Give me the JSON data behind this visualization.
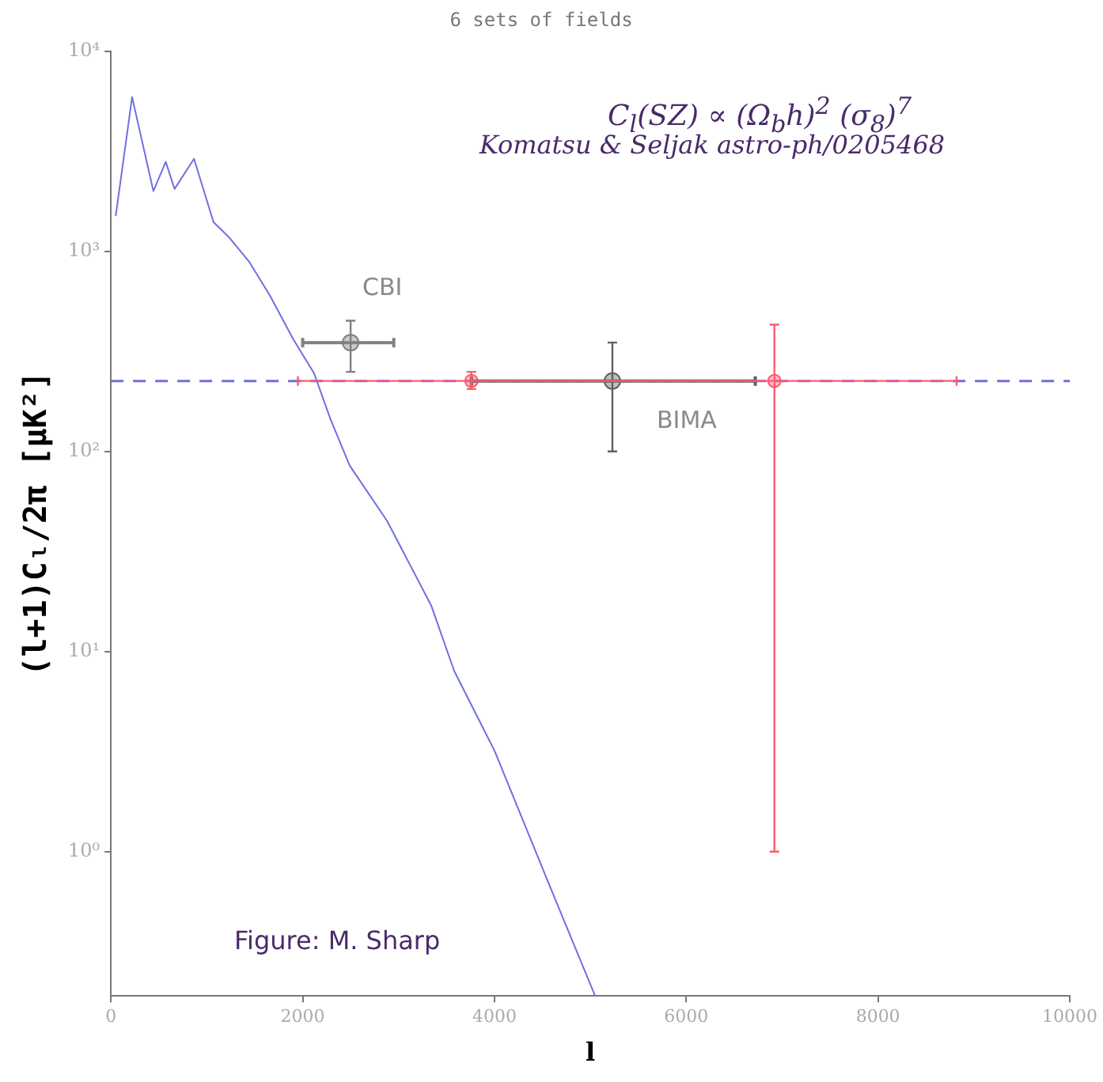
{
  "chart_data": {
    "type": "scatter",
    "title": "6 sets of fields",
    "xlabel": "l",
    "ylabel": "(l+1)Cₗ/2π [μK²]",
    "log": "y",
    "xlim": [
      0,
      10000
    ],
    "xticks": [
      0,
      2000,
      4000,
      6000,
      8000,
      10000
    ],
    "ylim": [
      0.19,
      10000
    ],
    "yticks": [
      {
        "value": 1,
        "label": "10⁰"
      },
      {
        "value": 10,
        "label": "10¹"
      },
      {
        "value": 100,
        "label": "10²"
      },
      {
        "value": 1000,
        "label": "10³"
      },
      {
        "value": 10000,
        "label": "10⁴"
      }
    ],
    "grid": false,
    "legend": false,
    "marker": "circle",
    "annotations": [
      "C$_{l}$(SZ) ∝ (Ω$_{b}$h)$^{2}$ (σ$_{8}$)$^{7}$",
      "Komatsu & Seljak astro-ph/0205468",
      "Figure: M. Sharp"
    ],
    "ref_lines": [
      {
        "axis": "y",
        "value": 225,
        "color": "#6f6fe0",
        "line_style": "dashed"
      }
    ],
    "series": [
      {
        "type": "line",
        "color": "#7070e0",
        "marker": "none",
        "x": [
          50,
          221,
          443,
          572,
          664,
          867,
          1070,
          1236,
          1440,
          1660,
          1900,
          2120,
          2290,
          2490,
          2880,
          3340,
          3580,
          4000,
          4590,
          5050
        ],
        "values": [
          1500,
          5900,
          2000,
          2800,
          2050,
          2900,
          1400,
          1170,
          890,
          600,
          365,
          245,
          145,
          85,
          45,
          17,
          8,
          3.2,
          0.65,
          0.19
        ]
      },
      {
        "name": "CBI",
        "color": "#808080",
        "x": [
          2500
        ],
        "values": [
          350
        ],
        "errors": [
          [
            250,
            450
          ]
        ],
        "xerrors": [
          [
            2000,
            2950
          ]
        ]
      },
      {
        "name": "BIMA",
        "color": "#606060",
        "x": [
          5230
        ],
        "values": [
          225
        ],
        "errors": [
          [
            100,
            350
          ]
        ],
        "xerrors": [
          [
            3760,
            6720
          ]
        ]
      },
      {
        "color": "#ff5a6e",
        "x": [
          3760,
          6920
        ],
        "values": [
          225,
          225
        ],
        "errors": [
          [
            205,
            250
          ],
          [
            1,
            430
          ]
        ],
        "xerrors": [
          null,
          [
            1950,
            8820
          ]
        ]
      }
    ]
  }
}
